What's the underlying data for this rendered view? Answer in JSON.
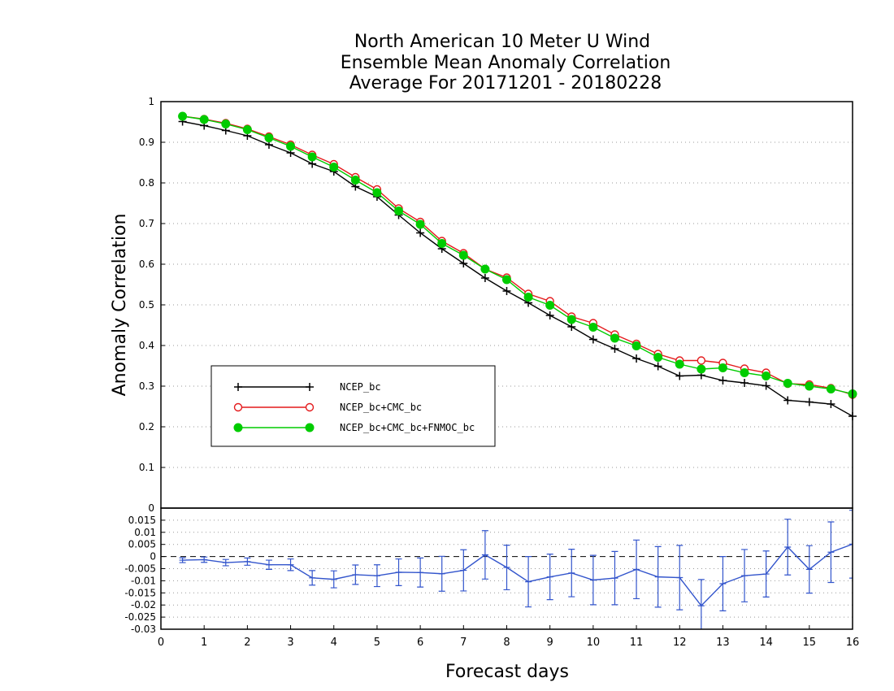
{
  "chart_data": [
    {
      "type": "line",
      "title": [
        "North American 10 Meter U Wind",
        "Ensemble Mean Anomaly Correlation",
        "Average For 20171201 - 20180228"
      ],
      "ylabel": "Anomaly Correlation",
      "xlim": [
        0,
        16
      ],
      "ylim": [
        0,
        1
      ],
      "y_ticks": [
        "0",
        "0.1",
        "0.2",
        "0.3",
        "0.4",
        "0.5",
        "0.6",
        "0.7",
        "0.8",
        "0.9",
        "1"
      ],
      "grid": "horizontal dotted",
      "legend_placement": "center-left",
      "x": [
        0.5,
        1,
        1.5,
        2,
        2.5,
        3,
        3.5,
        4,
        4.5,
        5,
        5.5,
        6,
        6.5,
        7,
        7.5,
        8,
        8.5,
        9,
        9.5,
        10,
        10.5,
        11,
        11.5,
        12,
        12.5,
        13,
        13.5,
        14,
        14.5,
        15,
        15.5,
        16
      ],
      "series": [
        {
          "name": "NCEP_bc",
          "color": "#000000",
          "marker": "plus",
          "values": [
            0.951,
            0.941,
            0.929,
            0.916,
            0.894,
            0.874,
            0.847,
            0.828,
            0.791,
            0.766,
            0.721,
            0.677,
            0.638,
            0.602,
            0.566,
            0.534,
            0.505,
            0.474,
            0.446,
            0.415,
            0.392,
            0.368,
            0.349,
            0.325,
            0.327,
            0.314,
            0.308,
            0.301,
            0.265,
            0.261,
            0.256,
            0.226
          ]
        },
        {
          "name": "NCEP_bc+CMC_bc",
          "color": "#e41a1c",
          "marker": "open-circle",
          "values": [
            0.964,
            0.957,
            0.947,
            0.933,
            0.914,
            0.894,
            0.869,
            0.846,
            0.814,
            0.784,
            0.737,
            0.704,
            0.657,
            0.627,
            0.588,
            0.567,
            0.527,
            0.509,
            0.471,
            0.455,
            0.427,
            0.404,
            0.379,
            0.363,
            0.363,
            0.357,
            0.343,
            0.333,
            0.306,
            0.304,
            0.295,
            0.279
          ]
        },
        {
          "name": "NCEP_bc+CMC_bc+FNMOC_bc",
          "color": "#00cc00",
          "marker": "filled-circle",
          "values": [
            0.964,
            0.956,
            0.945,
            0.931,
            0.911,
            0.89,
            0.864,
            0.839,
            0.807,
            0.776,
            0.731,
            0.698,
            0.651,
            0.622,
            0.588,
            0.562,
            0.519,
            0.499,
            0.464,
            0.445,
            0.418,
            0.399,
            0.371,
            0.354,
            0.342,
            0.345,
            0.333,
            0.325,
            0.307,
            0.3,
            0.293,
            0.281
          ]
        }
      ]
    },
    {
      "type": "line",
      "xlabel": "Forecast days",
      "xlim": [
        0,
        16
      ],
      "ylim": [
        -0.03,
        0.02
      ],
      "x_ticks": [
        "0",
        "1",
        "2",
        "3",
        "4",
        "5",
        "6",
        "7",
        "8",
        "9",
        "10",
        "11",
        "12",
        "13",
        "14",
        "15",
        "16"
      ],
      "y_ticks": [
        "-0.03",
        "-0.025",
        "-0.02",
        "-0.015",
        "-0.01",
        "-0.005",
        "0",
        "0.005",
        "0.01",
        "0.015"
      ],
      "grid": "horizontal dotted",
      "reference_line": 0,
      "x": [
        0.5,
        1,
        1.5,
        2,
        2.5,
        3,
        3.5,
        4,
        4.5,
        5,
        5.5,
        6,
        6.5,
        7,
        7.5,
        8,
        8.5,
        9,
        9.5,
        10,
        10.5,
        11,
        11.5,
        12,
        12.5,
        13,
        13.5,
        14,
        14.5,
        15,
        15.5,
        16
      ],
      "series": [
        {
          "color": "#3355cc",
          "marker": "error-bar",
          "values": [
            -0.0015,
            -0.0013,
            -0.0025,
            -0.0021,
            -0.0034,
            -0.0034,
            -0.0088,
            -0.0094,
            -0.0075,
            -0.0079,
            -0.0065,
            -0.0066,
            -0.0071,
            -0.0057,
            0.0007,
            -0.0045,
            -0.0104,
            -0.0084,
            -0.0068,
            -0.0097,
            -0.0089,
            -0.0053,
            -0.0084,
            -0.0087,
            -0.0203,
            -0.0112,
            -0.0079,
            -0.0072,
            0.0039,
            -0.0053,
            0.0018,
            0.0051
          ],
          "error": [
            0.001,
            0.0011,
            0.0013,
            0.0015,
            0.0019,
            0.0024,
            0.003,
            0.0035,
            0.004,
            0.0045,
            0.0055,
            0.006,
            0.0072,
            0.0085,
            0.01,
            0.0092,
            0.0104,
            0.0094,
            0.0098,
            0.0102,
            0.011,
            0.0121,
            0.0125,
            0.0133,
            0.0108,
            0.0112,
            0.0108,
            0.0095,
            0.0115,
            0.0098,
            0.0125,
            0.014
          ]
        }
      ]
    }
  ]
}
